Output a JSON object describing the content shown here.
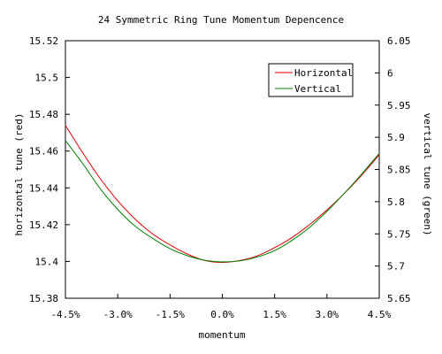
{
  "chart_data": {
    "type": "line",
    "title": "24 Symmetric Ring Tune Momentum Depencence",
    "xlabel": "momentum",
    "ylabel_left": "horizontal tune (red)",
    "ylabel_right": "vertical tune (green)",
    "x_ticks": [
      "-4.5%",
      "-3.0%",
      "-1.5%",
      "0.0%",
      "1.5%",
      "3.0%",
      "4.5%"
    ],
    "x_tick_values": [
      -4.5,
      -3.0,
      -1.5,
      0.0,
      1.5,
      3.0,
      4.5
    ],
    "xlim": [
      -4.5,
      4.5
    ],
    "ylim_left": [
      15.38,
      15.52
    ],
    "ylim_right": [
      5.65,
      6.05
    ],
    "y_left_ticks": [
      "15.38",
      "15.4",
      "15.42",
      "15.44",
      "15.46",
      "15.48",
      "15.5",
      "15.52"
    ],
    "y_left_tick_values": [
      15.38,
      15.4,
      15.42,
      15.44,
      15.46,
      15.48,
      15.5,
      15.52
    ],
    "y_right_ticks": [
      "5.65",
      "5.7",
      "5.75",
      "5.8",
      "5.85",
      "5.9",
      "5.95",
      "6",
      "6.05"
    ],
    "y_right_tick_values": [
      5.65,
      5.7,
      5.75,
      5.8,
      5.85,
      5.9,
      5.95,
      6.0,
      6.05
    ],
    "grid": false,
    "legend_position": "top-right",
    "series": [
      {
        "name": "Horizontal",
        "axis": "left",
        "color": "#e00000",
        "x": [
          -4.5,
          -4.0,
          -3.5,
          -3.0,
          -2.5,
          -2.0,
          -1.5,
          -1.0,
          -0.5,
          0.0,
          0.5,
          1.0,
          1.5,
          2.0,
          2.5,
          3.0,
          3.5,
          4.0,
          4.5
        ],
        "y": [
          15.474,
          15.459,
          15.445,
          15.433,
          15.423,
          15.415,
          15.409,
          15.404,
          15.4005,
          15.3995,
          15.4005,
          15.403,
          15.4075,
          15.413,
          15.42,
          15.428,
          15.437,
          15.447,
          15.458
        ]
      },
      {
        "name": "Vertical",
        "axis": "right",
        "color": "#008000",
        "x": [
          -4.5,
          -4.0,
          -3.5,
          -3.0,
          -2.5,
          -2.0,
          -1.5,
          -1.0,
          -0.5,
          0.0,
          0.5,
          1.0,
          1.5,
          2.0,
          2.5,
          3.0,
          3.5,
          4.0,
          4.5
        ],
        "y": [
          5.895,
          5.859,
          5.82,
          5.788,
          5.762,
          5.743,
          5.727,
          5.716,
          5.709,
          5.7065,
          5.708,
          5.714,
          5.724,
          5.74,
          5.76,
          5.785,
          5.813,
          5.843,
          5.875
        ]
      }
    ]
  }
}
